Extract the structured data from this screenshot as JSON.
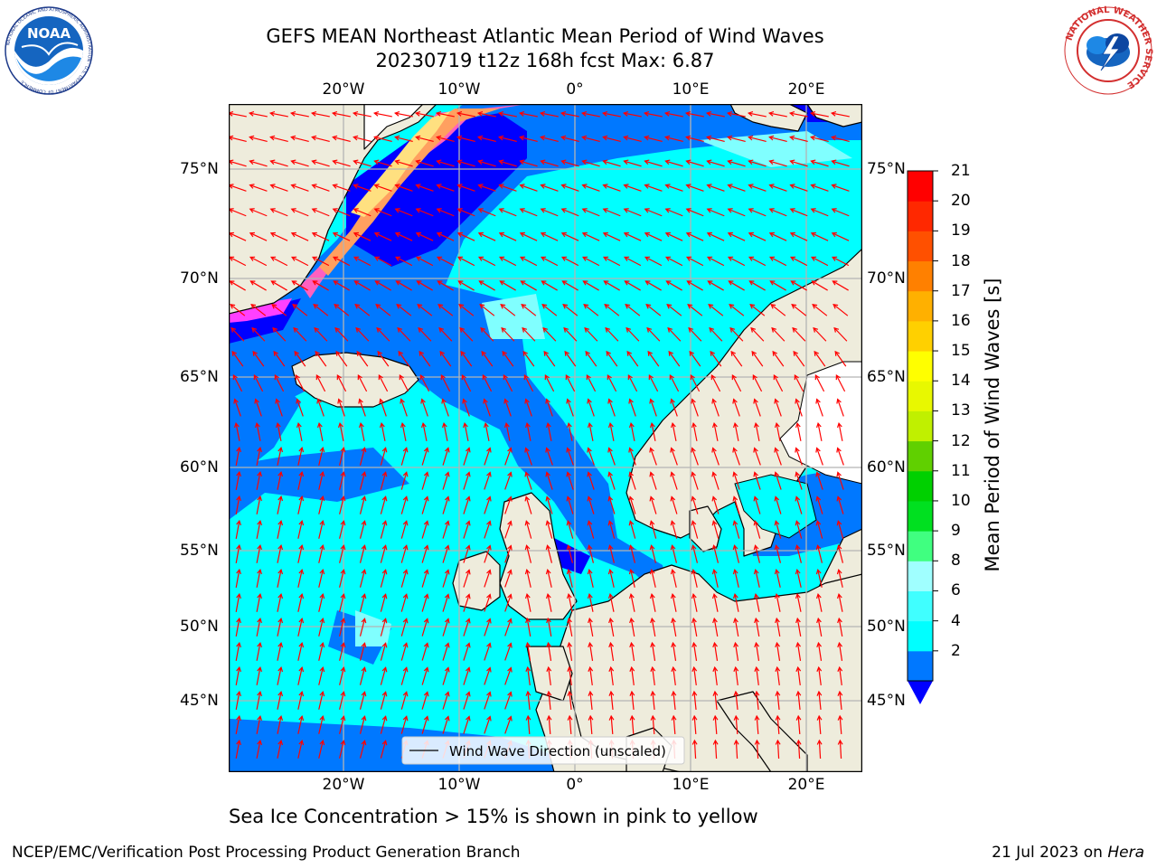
{
  "title": {
    "line1": "GEFS MEAN Northeast Atlantic Mean Period of Wind Waves",
    "line2": "20230719 t12z 168h fcst   Max: 6.87"
  },
  "logos": {
    "noaa_text": "NOAA",
    "noaa_ring_text": "NATIONAL OCEANIC AND ATMOSPHERIC ADMINISTRATION · U.S. DEPARTMENT OF COMMERCE",
    "nws_ring_text": "NATIONAL WEATHER SERVICE"
  },
  "map": {
    "lon_labels": [
      "20°W",
      "10°W",
      "0°",
      "10°E",
      "20°E"
    ],
    "lat_labels": [
      "75°N",
      "70°N",
      "65°N",
      "60°N",
      "55°N",
      "50°N",
      "45°N"
    ],
    "legend_label": "Wind Wave Direction (unscaled)",
    "colors": {
      "land": "#eeecdc",
      "ocean_main": "#00ffff",
      "ocean_mid": "#0078ff",
      "ocean_deep": "#0000ff",
      "arrow": "#ff0000",
      "grid": "#b4b4b4"
    }
  },
  "colorbar": {
    "ticks": [
      "21",
      "20",
      "19",
      "18",
      "17",
      "16",
      "15",
      "14",
      "13",
      "12",
      "11",
      "10",
      "9",
      "8",
      "6",
      "4",
      "2"
    ],
    "title": "Mean Period of Wind Waves [s]",
    "colors": [
      "#0078ff",
      "#00ffff",
      "#40ffff",
      "#a0ffff",
      "#40ff80",
      "#00e020",
      "#00d000",
      "#60d000",
      "#c0f000",
      "#e8f800",
      "#ffff00",
      "#ffd000",
      "#ffb000",
      "#ff8000",
      "#ff5000",
      "#ff2800",
      "#ff0000"
    ],
    "extend_color": "#0000ff"
  },
  "caption": "Sea Ice Concentration > 15% is shown in pink to yellow",
  "footer": {
    "left": "NCEP/EMC/Verification Post Processing Product Generation Branch",
    "right_date": "21 Jul 2023 on",
    "right_host": "Hera"
  }
}
